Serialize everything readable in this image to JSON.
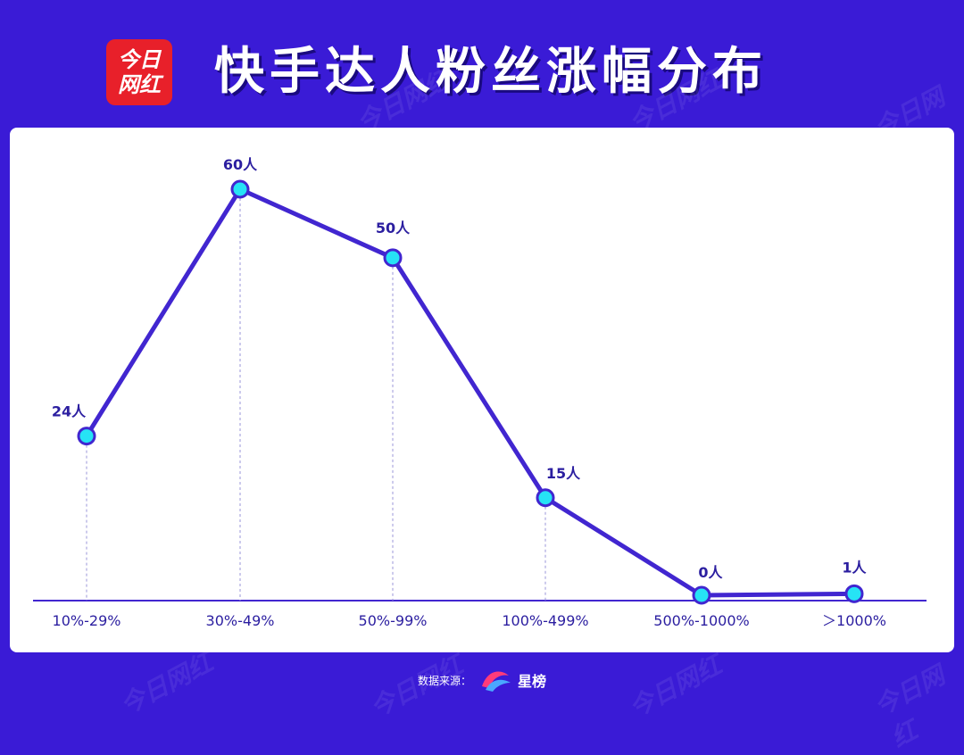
{
  "header": {
    "logo_line1": "今日",
    "logo_line2": "网红",
    "title": "快手达人粉丝涨幅分布"
  },
  "footer": {
    "source_label": "数据来源：",
    "brand": "星榜"
  },
  "colors": {
    "background": "#3a1bd6",
    "line": "#4126d0",
    "marker_fill": "#26e3f5",
    "label": "#2b1ea0",
    "logo_red": "#e8202a"
  },
  "chart_data": {
    "type": "line",
    "categories": [
      "10%-29%",
      "30%-49%",
      "50%-99%",
      "100%-499%",
      "500%-1000%",
      "＞1000%"
    ],
    "values": [
      24,
      60,
      50,
      15,
      0,
      1
    ],
    "data_labels": [
      "24人",
      "60人",
      "50人",
      "15人",
      "0人",
      "1人"
    ],
    "ylim": [
      0,
      62
    ],
    "grid": false,
    "legend": "none"
  }
}
